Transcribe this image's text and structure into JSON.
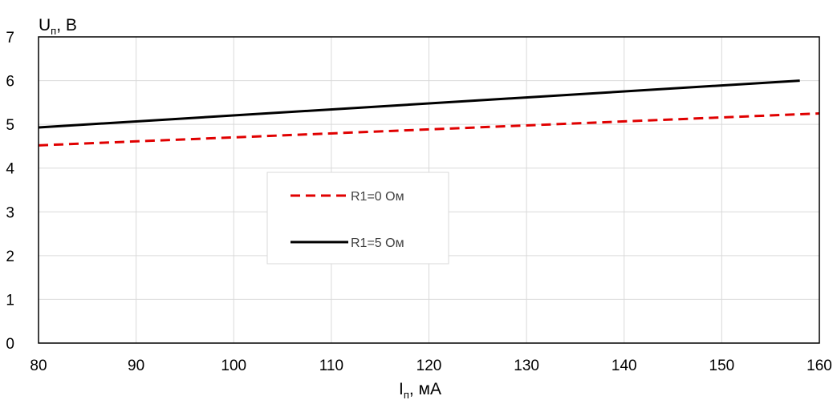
{
  "chart_data": {
    "type": "line",
    "ylabel": {
      "base": "U",
      "sub": "п",
      "suffix": ", В"
    },
    "xlabel": {
      "base": "I",
      "sub": "п",
      "suffix": ", мА"
    },
    "xlim": [
      80,
      160
    ],
    "ylim": [
      0,
      7
    ],
    "x_ticks": [
      80,
      90,
      100,
      110,
      120,
      130,
      140,
      150,
      160
    ],
    "y_ticks": [
      0,
      1,
      2,
      3,
      4,
      5,
      6,
      7
    ],
    "x_tick_labels": [
      "80",
      "90",
      "100",
      "110",
      "120",
      "130",
      "140",
      "150",
      "160"
    ],
    "y_tick_labels": [
      "0",
      "1",
      "2",
      "3",
      "4",
      "5",
      "6",
      "7"
    ],
    "grid": true,
    "legend_position": "center-left",
    "series": [
      {
        "name": "R1=0 Ом",
        "x": [
          80,
          160
        ],
        "y": [
          4.52,
          5.25
        ],
        "color": "#e00000",
        "dashed": true
      },
      {
        "name": "R1=5 Ом",
        "x": [
          80,
          158
        ],
        "y": [
          4.93,
          6.0
        ],
        "color": "#000000",
        "dashed": false
      }
    ]
  }
}
